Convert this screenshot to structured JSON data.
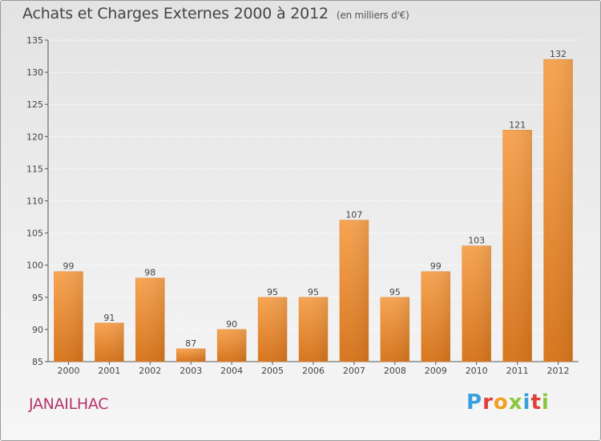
{
  "chart_data": {
    "type": "bar",
    "title": "Achats et Charges Externes 2000 à 2012",
    "unit_label": "(en milliers d'€)",
    "categories": [
      "2000",
      "2001",
      "2002",
      "2003",
      "2004",
      "2005",
      "2006",
      "2007",
      "2008",
      "2009",
      "2010",
      "2011",
      "2012"
    ],
    "values": [
      99,
      91,
      98,
      87,
      90,
      95,
      95,
      107,
      95,
      99,
      103,
      121,
      132
    ],
    "ylim": [
      85,
      135
    ],
    "yticks": [
      85,
      90,
      95,
      100,
      105,
      110,
      115,
      120,
      125,
      130,
      135
    ],
    "xlabel": "",
    "ylabel": "",
    "grid": true,
    "bar_color": "#ee8d34"
  },
  "footer": {
    "commune": "JANAILHAC",
    "logo": "Proxiti"
  }
}
